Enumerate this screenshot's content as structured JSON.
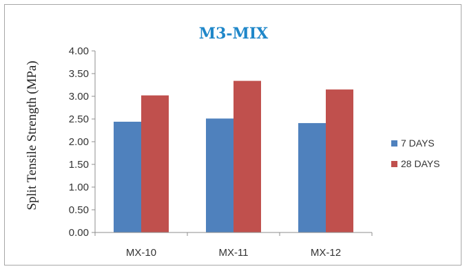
{
  "chart_data": {
    "type": "bar",
    "title": "M3-MIX",
    "xlabel": "",
    "ylabel": "Split Tensile Strength (MPa)",
    "categories": [
      "MX-10",
      "MX-11",
      "MX-12"
    ],
    "series": [
      {
        "name": "7 DAYS",
        "values": [
          2.44,
          2.51,
          2.41
        ],
        "color": "#4f81bd"
      },
      {
        "name": "28 DAYS",
        "values": [
          3.02,
          3.34,
          3.15
        ],
        "color": "#c0504d"
      }
    ],
    "ylim": [
      0,
      4.0
    ],
    "yticks": [
      "0.00",
      "0.50",
      "1.00",
      "1.50",
      "2.00",
      "2.50",
      "3.00",
      "3.50",
      "4.00"
    ],
    "grid": false,
    "legend_position": "right"
  }
}
